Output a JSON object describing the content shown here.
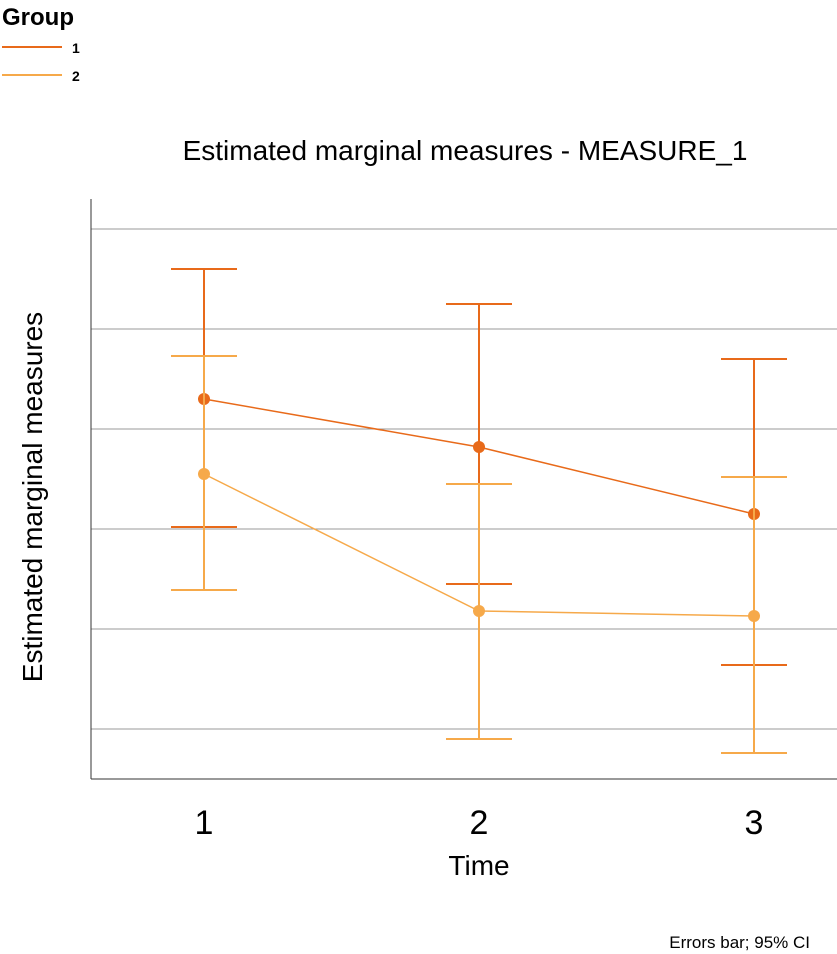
{
  "legend": {
    "title": "Group",
    "items": [
      {
        "label": "1",
        "color": "#e86a1a"
      },
      {
        "label": "2",
        "color": "#f6a94a"
      }
    ]
  },
  "footnote": "Errors bar; 95% CI",
  "chart_data": {
    "type": "line",
    "title": "Estimated marginal measures - MEASURE_1",
    "xlabel": "Time",
    "ylabel": "Estimated marginal measures",
    "categories": [
      "1",
      "2",
      "3"
    ],
    "grid": true,
    "ylim": [
      0,
      5.8
    ],
    "series": [
      {
        "name": "1",
        "color": "#e86a1a",
        "values": [
          3.8,
          3.32,
          2.65
        ],
        "ci_lower": [
          2.52,
          1.95,
          1.14
        ],
        "ci_upper": [
          5.1,
          4.75,
          4.2
        ]
      },
      {
        "name": "2",
        "color": "#f6a94a",
        "values": [
          3.05,
          1.68,
          1.63
        ],
        "ci_lower": [
          1.89,
          0.4,
          0.26
        ],
        "ci_upper": [
          4.23,
          2.95,
          3.02
        ]
      }
    ]
  }
}
